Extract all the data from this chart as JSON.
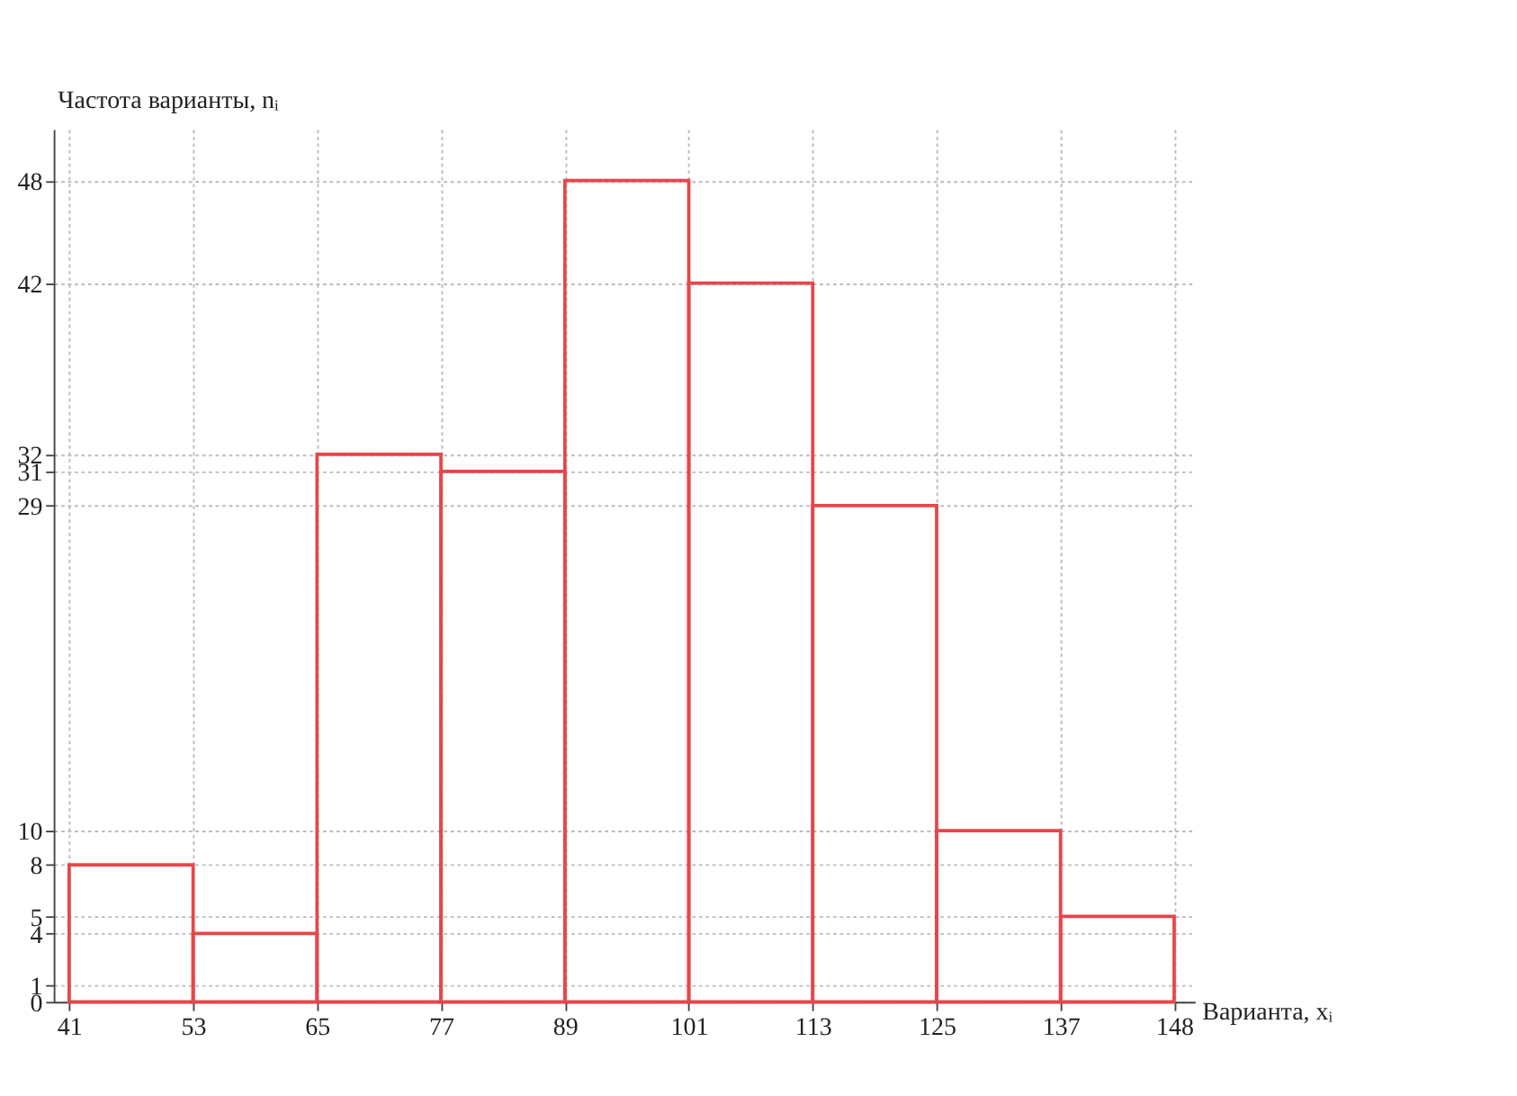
{
  "chart_data": {
    "type": "histogram",
    "xlabel": "Варианта, xᵢ",
    "ylabel": "Частота варианты, nᵢ",
    "bins": [
      41,
      53,
      65,
      77,
      89,
      101,
      113,
      125,
      137,
      148
    ],
    "values": [
      8,
      4,
      32,
      31,
      48,
      42,
      29,
      10,
      5
    ],
    "color": "#e8454a",
    "xlim": [
      39.5,
      150
    ],
    "ylim": [
      0,
      51
    ],
    "xticks": [
      41,
      53,
      65,
      77,
      89,
      101,
      113,
      125,
      137,
      148
    ],
    "yticks": [
      0,
      1,
      4,
      5,
      8,
      10,
      29,
      31,
      32,
      42,
      48
    ],
    "grid": true
  }
}
